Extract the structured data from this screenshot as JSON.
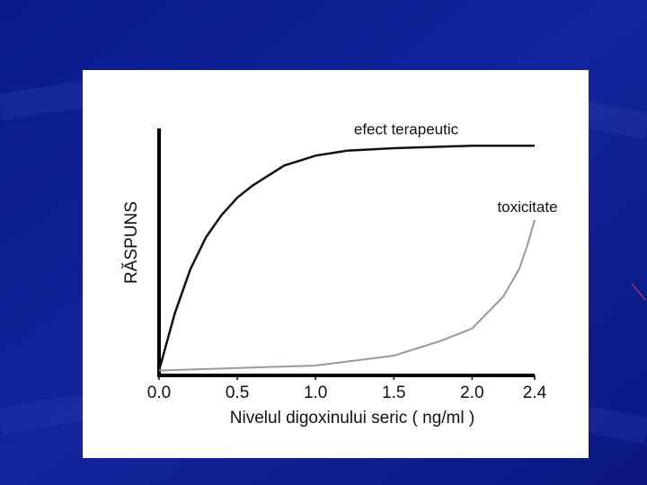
{
  "chart_data": {
    "type": "line",
    "x_label": "Nivelul digoxinului seric  ( ng/ml )",
    "y_label": "RĂSPUNS",
    "xlim": [
      0,
      2.4
    ],
    "ylim": [
      0,
      1
    ],
    "xticks": [
      {
        "value": 0,
        "label": "0.0"
      },
      0.5,
      {
        "value": 1,
        "label": "1.0"
      },
      1.5,
      {
        "value": 2,
        "label": "2.0"
      },
      2.4
    ],
    "series": [
      {
        "name": "efect terapeutic",
        "color": "#111111",
        "x": [
          0,
          0.1,
          0.2,
          0.3,
          0.4,
          0.5,
          0.6,
          0.8,
          1.0,
          1.2,
          1.5,
          2.0,
          2.4
        ],
        "values": [
          0.02,
          0.25,
          0.43,
          0.56,
          0.65,
          0.72,
          0.77,
          0.85,
          0.89,
          0.91,
          0.92,
          0.93,
          0.93
        ]
      },
      {
        "name": "toxicitate",
        "color": "#999999",
        "x": [
          0,
          0.5,
          1.0,
          1.5,
          1.8,
          2.0,
          2.2,
          2.3,
          2.35,
          2.4
        ],
        "values": [
          0.02,
          0.03,
          0.04,
          0.08,
          0.14,
          0.19,
          0.32,
          0.43,
          0.52,
          0.63
        ]
      }
    ]
  }
}
